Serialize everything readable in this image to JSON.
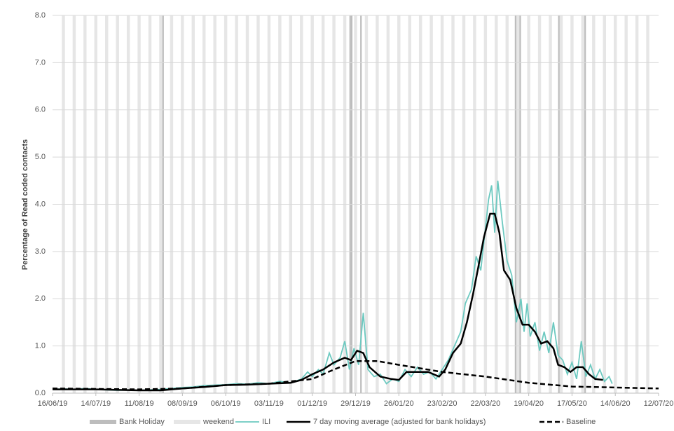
{
  "chart_data": {
    "type": "line",
    "y_label": "Percentage of Read coded contacts",
    "xlim": [
      "16/06/19",
      "12/07/20"
    ],
    "xticks": [
      "16/06/19",
      "14/07/19",
      "11/08/19",
      "08/09/19",
      "06/10/19",
      "03/11/19",
      "01/12/19",
      "29/12/19",
      "26/01/20",
      "23/02/20",
      "22/03/20",
      "19/04/20",
      "17/05/20",
      "14/06/20",
      "12/07/20"
    ],
    "ylim": [
      0,
      8
    ],
    "yticks": [
      {
        "value": 0,
        "label": "0.0"
      },
      {
        "value": 1,
        "label": "1.0"
      },
      {
        "value": 2,
        "label": "2.0"
      },
      {
        "value": 3,
        "label": "3.0"
      },
      {
        "value": 4,
        "label": "4.0"
      },
      {
        "value": 5,
        "label": "5.0"
      },
      {
        "value": 6,
        "label": "6.0"
      },
      {
        "value": 7,
        "label": "7.0"
      },
      {
        "value": 8,
        "label": "8.0"
      }
    ],
    "grid": true,
    "shading": [
      {
        "name": "Bank Holiday",
        "color": "#bdbdbd",
        "days": 1,
        "dates": [
          "26/08/19",
          "25/12/19",
          "26/12/19",
          "01/01/20",
          "10/04/20",
          "13/04/20",
          "08/05/20",
          "25/05/20"
        ]
      },
      {
        "name": "weekend",
        "color": "#e6e6e6",
        "days": 2,
        "dates": [
          "22/06/19",
          "29/06/19",
          "06/07/19",
          "13/07/19",
          "20/07/19",
          "27/07/19",
          "03/08/19",
          "10/08/19",
          "17/08/19",
          "24/08/19",
          "31/08/19",
          "07/09/19",
          "14/09/19",
          "21/09/19",
          "28/09/19",
          "05/10/19",
          "12/10/19",
          "19/10/19",
          "26/10/19",
          "02/11/19",
          "09/11/19",
          "16/11/19",
          "23/11/19",
          "30/11/19",
          "07/12/19",
          "14/12/19",
          "21/12/19",
          "28/12/19",
          "04/01/20",
          "11/01/20",
          "18/01/20",
          "25/01/20",
          "01/02/20",
          "08/02/20",
          "15/02/20",
          "22/02/20",
          "29/02/20",
          "07/03/20",
          "14/03/20",
          "21/03/20",
          "28/03/20",
          "04/04/20",
          "11/04/20",
          "18/04/20",
          "25/04/20",
          "02/05/20",
          "09/05/20",
          "16/05/20",
          "23/05/20",
          "30/05/20",
          "06/06/20",
          "13/06/20",
          "20/06/20",
          "27/06/20",
          "04/07/20"
        ]
      }
    ],
    "series": [
      {
        "name": "ILI",
        "color": "#6cc9c0",
        "dashed": false,
        "x": [
          "16/06/19",
          "23/06/19",
          "30/06/19",
          "07/07/19",
          "14/07/19",
          "21/07/19",
          "28/07/19",
          "04/08/19",
          "11/08/19",
          "18/08/19",
          "25/08/19",
          "01/09/19",
          "08/09/19",
          "15/09/19",
          "22/09/19",
          "29/09/19",
          "06/10/19",
          "13/10/19",
          "20/10/19",
          "27/10/19",
          "03/11/19",
          "10/11/19",
          "17/11/19",
          "24/11/19",
          "28/11/19",
          "01/12/19",
          "05/12/19",
          "08/12/19",
          "12/12/19",
          "15/12/19",
          "19/12/19",
          "22/12/19",
          "25/12/19",
          "28/12/19",
          "31/12/19",
          "03/01/20",
          "06/01/20",
          "10/01/20",
          "14/01/20",
          "18/01/20",
          "22/01/20",
          "26/01/20",
          "30/01/20",
          "03/02/20",
          "07/02/20",
          "11/02/20",
          "15/02/20",
          "19/02/20",
          "23/02/20",
          "27/02/20",
          "02/03/20",
          "06/03/20",
          "09/03/20",
          "13/03/20",
          "16/03/20",
          "19/03/20",
          "22/03/20",
          "24/03/20",
          "26/03/20",
          "28/03/20",
          "30/03/20",
          "02/04/20",
          "05/04/20",
          "08/04/20",
          "11/04/20",
          "14/04/20",
          "16/04/20",
          "18/04/20",
          "20/04/20",
          "23/04/20",
          "26/04/20",
          "29/04/20",
          "02/05/20",
          "05/05/20",
          "08/05/20",
          "11/05/20",
          "14/05/20",
          "17/05/20",
          "20/05/20",
          "23/05/20",
          "26/05/20",
          "29/05/20",
          "01/06/20",
          "04/06/20",
          "07/06/20",
          "10/06/20",
          "12/06/20"
        ],
        "values": [
          0.08,
          0.09,
          0.08,
          0.1,
          0.08,
          0.07,
          0.06,
          0.07,
          0.06,
          0.07,
          0.08,
          0.1,
          0.12,
          0.13,
          0.16,
          0.17,
          0.18,
          0.2,
          0.19,
          0.22,
          0.2,
          0.25,
          0.22,
          0.3,
          0.45,
          0.35,
          0.5,
          0.4,
          0.85,
          0.6,
          0.75,
          1.1,
          0.5,
          0.95,
          0.6,
          1.7,
          0.5,
          0.35,
          0.4,
          0.2,
          0.3,
          0.25,
          0.5,
          0.35,
          0.55,
          0.4,
          0.45,
          0.3,
          0.5,
          0.7,
          1.0,
          1.3,
          1.9,
          2.2,
          2.9,
          2.6,
          3.5,
          4.1,
          4.4,
          3.4,
          4.5,
          3.6,
          2.8,
          2.5,
          1.5,
          2.0,
          1.3,
          1.9,
          1.2,
          1.5,
          0.9,
          1.3,
          0.85,
          1.5,
          0.8,
          0.7,
          0.4,
          0.65,
          0.3,
          1.1,
          0.35,
          0.6,
          0.3,
          0.5,
          0.25,
          0.35,
          0.2
        ]
      },
      {
        "name": "7 day moving average (adjusted for bank holidays)",
        "color": "#000000",
        "dashed": false,
        "x": [
          "16/06/19",
          "14/07/19",
          "11/08/19",
          "25/08/19",
          "08/09/19",
          "22/09/19",
          "06/10/19",
          "20/10/19",
          "03/11/19",
          "17/11/19",
          "24/11/19",
          "01/12/19",
          "08/12/19",
          "15/12/19",
          "22/12/19",
          "26/12/19",
          "30/12/19",
          "03/01/20",
          "07/01/20",
          "14/01/20",
          "21/01/20",
          "26/01/20",
          "31/01/20",
          "07/02/20",
          "14/02/20",
          "21/02/20",
          "25/02/20",
          "01/03/20",
          "06/03/20",
          "10/03/20",
          "14/03/20",
          "17/03/20",
          "21/03/20",
          "25/03/20",
          "28/03/20",
          "31/03/20",
          "03/04/20",
          "07/04/20",
          "11/04/20",
          "15/04/20",
          "19/04/20",
          "23/04/20",
          "27/04/20",
          "01/05/20",
          "05/05/20",
          "08/05/20",
          "12/05/20",
          "16/05/20",
          "20/05/20",
          "24/05/20",
          "28/05/20",
          "01/06/20",
          "06/06/20"
        ],
        "values": [
          0.08,
          0.08,
          0.06,
          0.06,
          0.1,
          0.13,
          0.17,
          0.18,
          0.2,
          0.22,
          0.28,
          0.4,
          0.5,
          0.65,
          0.75,
          0.7,
          0.9,
          0.85,
          0.55,
          0.35,
          0.3,
          0.28,
          0.45,
          0.45,
          0.45,
          0.35,
          0.5,
          0.85,
          1.05,
          1.5,
          2.1,
          2.6,
          3.3,
          3.8,
          3.8,
          3.4,
          2.6,
          2.4,
          1.8,
          1.45,
          1.45,
          1.3,
          1.05,
          1.1,
          0.95,
          0.6,
          0.55,
          0.45,
          0.55,
          0.55,
          0.4,
          0.3,
          0.28
        ]
      },
      {
        "name": "Baseline",
        "color": "#000000",
        "dashed": true,
        "x": [
          "16/06/19",
          "11/08/19",
          "08/09/19",
          "06/10/19",
          "03/11/19",
          "01/12/19",
          "15/12/19",
          "29/12/19",
          "12/01/20",
          "26/01/20",
          "23/02/20",
          "22/03/20",
          "19/04/20",
          "17/05/20",
          "14/06/20",
          "12/07/20"
        ],
        "values": [
          0.1,
          0.08,
          0.1,
          0.17,
          0.2,
          0.3,
          0.5,
          0.68,
          0.68,
          0.6,
          0.45,
          0.35,
          0.22,
          0.14,
          0.12,
          0.1
        ]
      }
    ]
  }
}
